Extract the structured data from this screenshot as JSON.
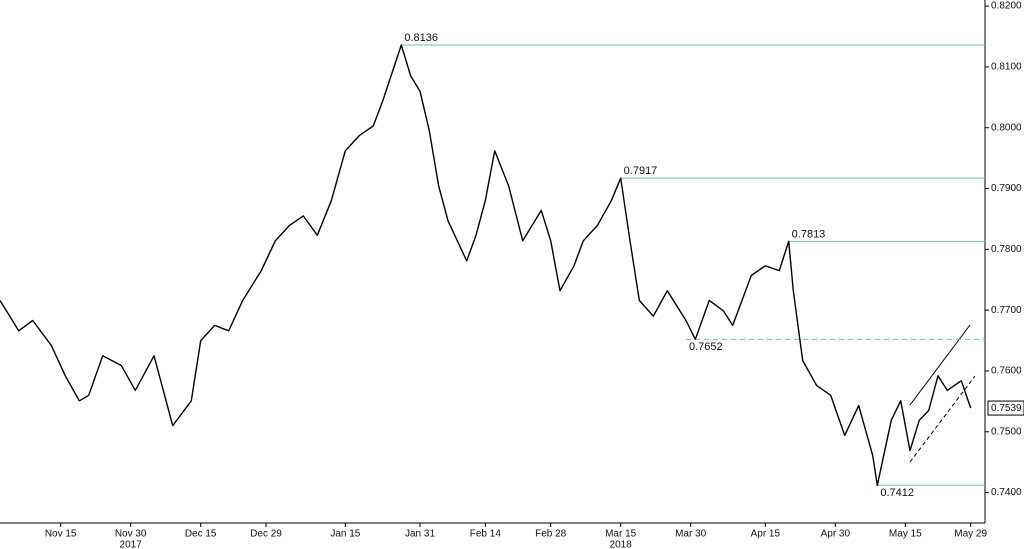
{
  "chart_data": {
    "type": "line",
    "color": "#000000",
    "level_color": "#7fbfae",
    "x": [
      "2017-11-02",
      "2017-11-06",
      "2017-11-09",
      "2017-11-13",
      "2017-11-16",
      "2017-11-19",
      "2017-11-21",
      "2017-11-24",
      "2017-11-28",
      "2017-12-01",
      "2017-12-05",
      "2017-12-07",
      "2017-12-09",
      "2017-12-13",
      "2017-12-15",
      "2017-12-18",
      "2017-12-21",
      "2017-12-24",
      "2017-12-28",
      "2017-12-31",
      "2018-01-03",
      "2018-01-06",
      "2018-01-09",
      "2018-01-12",
      "2018-01-15",
      "2018-01-18",
      "2018-01-21",
      "2018-01-23",
      "2018-01-27",
      "2018-01-29",
      "2018-01-31",
      "2018-02-02",
      "2018-02-04",
      "2018-02-06",
      "2018-02-10",
      "2018-02-12",
      "2018-02-14",
      "2018-02-16",
      "2018-02-19",
      "2018-02-22",
      "2018-02-26",
      "2018-02-28",
      "2018-03-02",
      "2018-03-05",
      "2018-03-07",
      "2018-03-10",
      "2018-03-13",
      "2018-03-15",
      "2018-03-17",
      "2018-03-19",
      "2018-03-22",
      "2018-03-25",
      "2018-03-29",
      "2018-03-31",
      "2018-04-03",
      "2018-04-06",
      "2018-04-08",
      "2018-04-12",
      "2018-04-15",
      "2018-04-18",
      "2018-04-20",
      "2018-04-21",
      "2018-04-23",
      "2018-04-26",
      "2018-04-29",
      "2018-05-02",
      "2018-05-05",
      "2018-05-08",
      "2018-05-09",
      "2018-05-12",
      "2018-05-14",
      "2018-05-16",
      "2018-05-18",
      "2018-05-20",
      "2018-05-22",
      "2018-05-24",
      "2018-05-27",
      "2018-05-29"
    ],
    "values": [
      0.7716,
      0.7666,
      0.7683,
      0.7642,
      0.7592,
      0.7551,
      0.756,
      0.7625,
      0.7609,
      0.7568,
      0.7625,
      0.7568,
      0.751,
      0.7551,
      0.765,
      0.7675,
      0.7666,
      0.7716,
      0.7765,
      0.7814,
      0.7839,
      0.7855,
      0.7823,
      0.788,
      0.7962,
      0.7987,
      0.8003,
      0.8044,
      0.8136,
      0.8085,
      0.806,
      0.7995,
      0.7904,
      0.7847,
      0.7781,
      0.7823,
      0.788,
      0.7962,
      0.7904,
      0.7814,
      0.7864,
      0.7814,
      0.7732,
      0.7773,
      0.7814,
      0.7839,
      0.788,
      0.7917,
      0.7814,
      0.7716,
      0.769,
      0.7732,
      0.7683,
      0.7652,
      0.7716,
      0.7699,
      0.7675,
      0.7757,
      0.7773,
      0.7765,
      0.7813,
      0.7732,
      0.7617,
      0.7576,
      0.756,
      0.7494,
      0.7543,
      0.7461,
      0.7412,
      0.7519,
      0.7551,
      0.7469,
      0.7519,
      0.7535,
      0.7592,
      0.7568,
      0.7584,
      0.7539
    ],
    "xlim": [
      "2017-11-02",
      "2018-05-31"
    ],
    "xticks": [
      {
        "value": "2017-11-15",
        "label": "Nov 15"
      },
      {
        "value": "2017-11-30",
        "label": "Nov 30"
      },
      {
        "value": "2017-12-15",
        "label": "Dec 15"
      },
      {
        "value": "2017-12-29",
        "label": "Dec 29"
      },
      {
        "value": "2018-01-15",
        "label": "Jan 15"
      },
      {
        "value": "2018-01-31",
        "label": "Jan 31"
      },
      {
        "value": "2018-02-14",
        "label": "Feb 14"
      },
      {
        "value": "2018-02-28",
        "label": "Feb 28"
      },
      {
        "value": "2018-03-15",
        "label": "Mar 15"
      },
      {
        "value": "2018-03-30",
        "label": "Mar 30"
      },
      {
        "value": "2018-04-15",
        "label": "Apr 15"
      },
      {
        "value": "2018-04-30",
        "label": "Apr 30"
      },
      {
        "value": "2018-05-15",
        "label": "May 15"
      },
      {
        "value": "2018-05-29",
        "label": "May 29"
      }
    ],
    "year_labels": [
      {
        "value": "2017-11-30",
        "label": "2017"
      },
      {
        "value": "2018-03-15",
        "label": "2018"
      }
    ],
    "ylim": [
      0.735,
      0.821
    ],
    "yticks": [
      {
        "value": 0.74,
        "label": "0.7400"
      },
      {
        "value": 0.75,
        "label": "0.7500"
      },
      {
        "value": 0.76,
        "label": "0.7600"
      },
      {
        "value": 0.77,
        "label": "0.7700"
      },
      {
        "value": 0.78,
        "label": "0.7800"
      },
      {
        "value": 0.79,
        "label": "0.7900"
      },
      {
        "value": 0.8,
        "label": "0.8000"
      },
      {
        "value": 0.81,
        "label": "0.8100"
      },
      {
        "value": 0.82,
        "label": "0.8200"
      }
    ],
    "levels": [
      {
        "value": 0.8136,
        "from": "2018-01-27",
        "dashed": false,
        "label_side": "above"
      },
      {
        "value": 0.7917,
        "from": "2018-03-15",
        "dashed": false,
        "label_side": "above"
      },
      {
        "value": 0.7813,
        "from": "2018-04-20",
        "dashed": false,
        "label_side": "above"
      },
      {
        "value": 0.7652,
        "from": "2018-03-29",
        "dashed": true,
        "label_side": "below"
      },
      {
        "value": 0.7412,
        "from": "2018-05-09",
        "dashed": false,
        "label_side": "below"
      }
    ],
    "last_value_box": true
  }
}
